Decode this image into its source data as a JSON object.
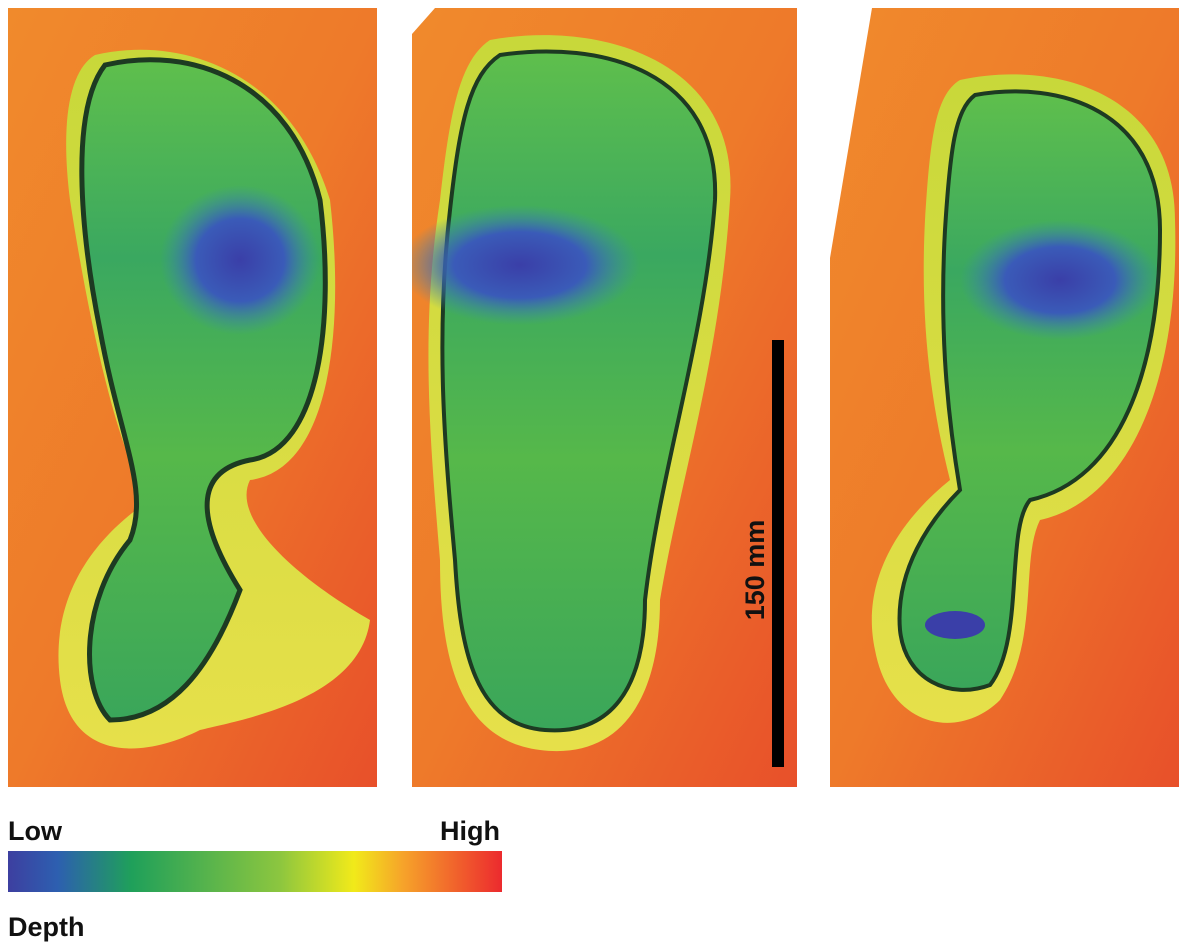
{
  "scale_bar": {
    "label": "150 mm"
  },
  "legend": {
    "low": "Low",
    "high": "High",
    "title": "Depth"
  }
}
